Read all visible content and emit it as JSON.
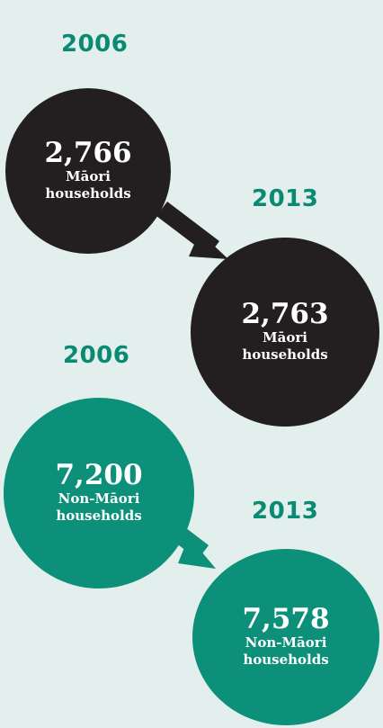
{
  "colors": {
    "background": "#e3efed",
    "maori": "#231f20",
    "non_maori": "#0c9079",
    "year_text": "#0a8a72"
  },
  "maori": {
    "year_from": "2006",
    "value_from": "2,766",
    "label_from_line1": "Māori",
    "label_from_line2": "households",
    "year_to": "2013",
    "value_to": "2,763",
    "label_to_line1": "Māori",
    "label_to_line2": "households"
  },
  "non_maori": {
    "year_from": "2006",
    "value_from": "7,200",
    "label_from_line1": "Non-Māori",
    "label_from_line2": "households",
    "year_to": "2013",
    "value_to": "7,578",
    "label_to_line1": "Non-Māori",
    "label_to_line2": "households"
  }
}
